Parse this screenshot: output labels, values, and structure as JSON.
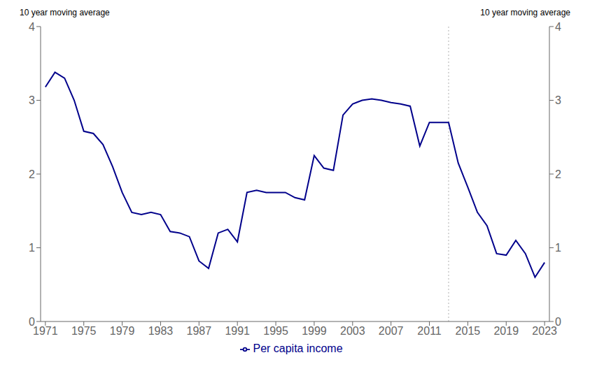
{
  "chart_data": {
    "type": "line",
    "ylabel": "10 year moving average",
    "y2label": "10 year moving average",
    "x": [
      1971,
      1972,
      1973,
      1974,
      1975,
      1976,
      1977,
      1978,
      1979,
      1980,
      1981,
      1982,
      1983,
      1984,
      1985,
      1986,
      1987,
      1988,
      1989,
      1990,
      1991,
      1992,
      1993,
      1994,
      1995,
      1996,
      1997,
      1998,
      1999,
      2000,
      2001,
      2002,
      2003,
      2004,
      2005,
      2006,
      2007,
      2008,
      2009,
      2010,
      2011,
      2012,
      2013,
      2014,
      2015,
      2016,
      2017,
      2018,
      2019,
      2020,
      2021,
      2022,
      2023
    ],
    "series": [
      {
        "name": "Per capita income",
        "color": "#00008B",
        "values": [
          3.18,
          3.38,
          3.3,
          3.0,
          2.58,
          2.55,
          2.4,
          2.1,
          1.75,
          1.48,
          1.45,
          1.48,
          1.45,
          1.22,
          1.2,
          1.15,
          0.82,
          0.72,
          1.2,
          1.25,
          1.08,
          1.75,
          1.78,
          1.75,
          1.75,
          1.75,
          1.68,
          1.65,
          2.25,
          2.08,
          2.05,
          2.8,
          2.95,
          3.0,
          3.02,
          3.0,
          2.97,
          2.95,
          2.92,
          2.38,
          2.7,
          2.7,
          2.7,
          2.15,
          1.82,
          1.48,
          1.3,
          0.92,
          0.9,
          1.1,
          0.92,
          0.6,
          0.8
        ]
      }
    ],
    "xlim": [
      1970.5,
      2023.5
    ],
    "xticks": [
      1971,
      1975,
      1979,
      1983,
      1987,
      1991,
      1995,
      1999,
      2003,
      2007,
      2011,
      2015,
      2019,
      2023
    ],
    "ylim": [
      0,
      4
    ],
    "yticks": [
      0,
      1,
      2,
      3,
      4
    ],
    "y2lim": [
      0,
      4
    ],
    "y2ticks": [
      0,
      1,
      2,
      3,
      4
    ],
    "vlines": [
      {
        "x": 2013,
        "color": "#b0b0b0",
        "line_style": "dotted"
      }
    ],
    "grid": false,
    "legend": "bottom"
  }
}
